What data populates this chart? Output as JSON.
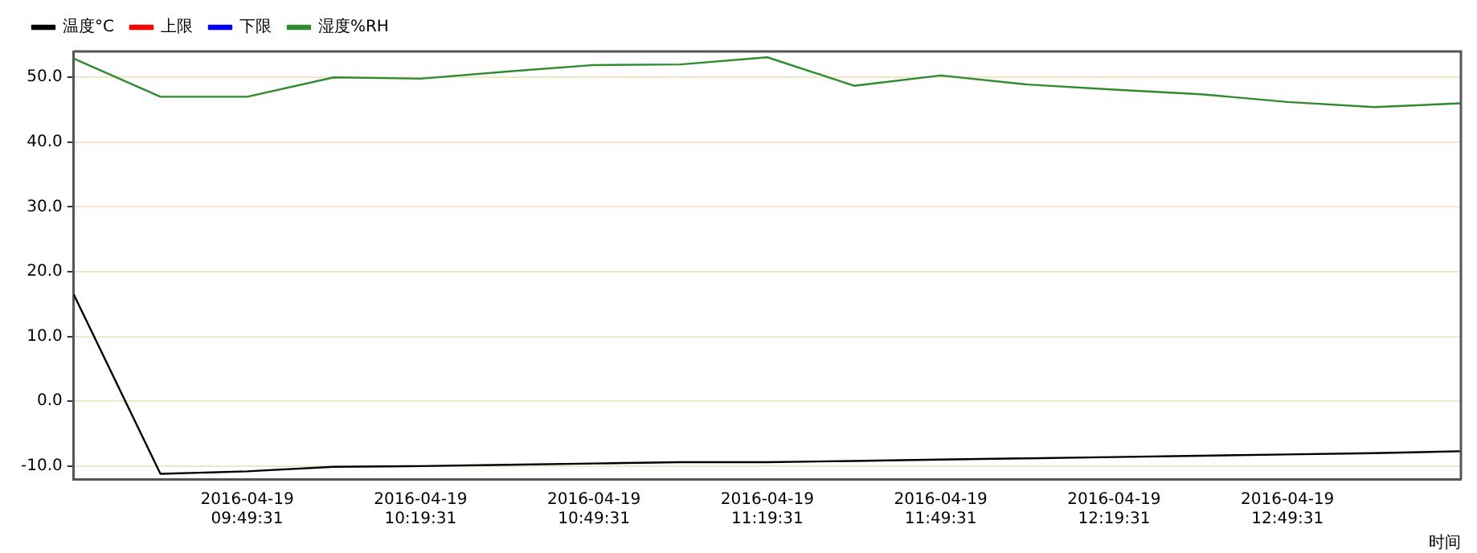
{
  "chart_data": {
    "type": "line",
    "xlabel": "时间",
    "legend": "top left",
    "grid": "y",
    "marker": "none",
    "line_style": "solid",
    "x": [
      "2016-04-19T09:19:31",
      "2016-04-19T09:34:31",
      "2016-04-19T09:49:31",
      "2016-04-19T10:04:31",
      "2016-04-19T10:19:31",
      "2016-04-19T10:34:31",
      "2016-04-19T10:49:31",
      "2016-04-19T11:04:31",
      "2016-04-19T11:19:31",
      "2016-04-19T11:34:31",
      "2016-04-19T11:49:31",
      "2016-04-19T12:04:31",
      "2016-04-19T12:19:31",
      "2016-04-19T12:34:31",
      "2016-04-19T12:49:31",
      "2016-04-19T13:04:31",
      "2016-04-19T13:19:31"
    ],
    "series": [
      {
        "name": "温度°C",
        "color": "#000000",
        "values": [
          16.5,
          -11.2,
          -10.8,
          -10.1,
          -10,
          -9.8,
          -9.6,
          -9.4,
          -9.4,
          -9.2,
          -9,
          -8.8,
          -8.6,
          -8.4,
          -8.2,
          -8,
          -7.7
        ]
      },
      {
        "name": "上限",
        "color": "#ff0000",
        "values": [
          null,
          null,
          null,
          null,
          null,
          null,
          null,
          null,
          null,
          null,
          null,
          null,
          null,
          null,
          null,
          null,
          null
        ]
      },
      {
        "name": "下限",
        "color": "#0000ff",
        "values": [
          null,
          null,
          null,
          null,
          null,
          null,
          null,
          null,
          null,
          null,
          null,
          null,
          null,
          null,
          null,
          null,
          null
        ]
      },
      {
        "name": "湿度%RH",
        "color": "#2e8b2e",
        "values": [
          52.9,
          47,
          47,
          50,
          49.8,
          50.9,
          51.9,
          52,
          53.1,
          48.7,
          50.3,
          48.9,
          48.1,
          47.4,
          46.2,
          45.4,
          46
        ]
      }
    ],
    "xlim": [
      "2016-04-19T09:19:31",
      "2016-04-19T13:19:31"
    ],
    "xticks": [
      {
        "value": "2016-04-19T09:49:31",
        "label": "2016-04-19 09:49:31"
      },
      {
        "value": "2016-04-19T10:19:31",
        "label": "2016-04-19 10:19:31"
      },
      {
        "value": "2016-04-19T10:49:31",
        "label": "2016-04-19 10:49:31"
      },
      {
        "value": "2016-04-19T11:19:31",
        "label": "2016-04-19 11:19:31"
      },
      {
        "value": "2016-04-19T11:49:31",
        "label": "2016-04-19 11:49:31"
      },
      {
        "value": "2016-04-19T12:19:31",
        "label": "2016-04-19 12:19:31"
      },
      {
        "value": "2016-04-19T12:49:31",
        "label": "2016-04-19 12:49:31"
      }
    ],
    "ylim": [
      -12,
      54
    ],
    "yticks": [
      {
        "value": -10,
        "label": "-10.0"
      },
      {
        "value": 0,
        "label": "0.0"
      },
      {
        "value": 10,
        "label": "10.0"
      },
      {
        "value": 20,
        "label": "20.0"
      },
      {
        "value": 30,
        "label": "30.0"
      },
      {
        "value": 40,
        "label": "40.0"
      },
      {
        "value": 50,
        "label": "50.0"
      }
    ]
  }
}
